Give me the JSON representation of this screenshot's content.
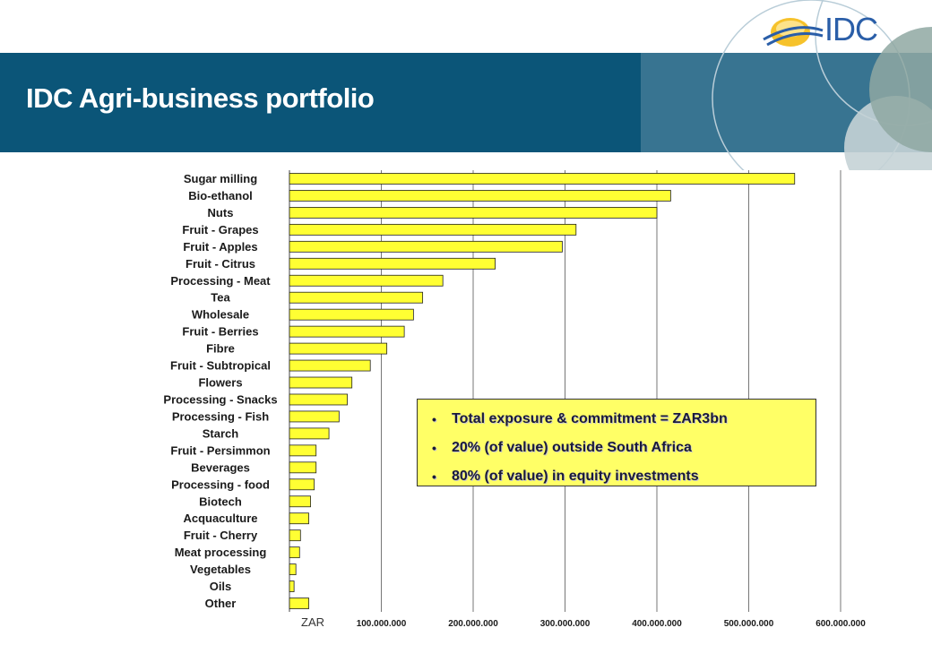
{
  "header": {
    "title": "IDC Agri-business portfolio",
    "logo_text": "IDC",
    "band_color": "#0b5578",
    "logo_color": "#2a5ea8"
  },
  "info_box": {
    "items": [
      "Total exposure & commitment = ZAR3bn",
      "20% (of value) outside South Africa",
      "80% (of value) in equity investments"
    ],
    "background": "#ffff66"
  },
  "chart_data": {
    "type": "bar",
    "orientation": "horizontal",
    "bar_color": "#ffff33",
    "categories": [
      "Sugar milling",
      "Bio-ethanol",
      "Nuts",
      "Fruit - Grapes",
      "Fruit - Apples",
      "Fruit - Citrus",
      "Processing - Meat",
      "Tea",
      "Wholesale",
      "Fruit - Berries",
      "Fibre",
      "Fruit - Subtropical",
      "Flowers",
      "Processing - Snacks",
      "Processing - Fish",
      "Starch",
      "Fruit - Persimmon",
      "Beverages",
      "Processing - food",
      "Biotech",
      "Acquaculture",
      "Fruit - Cherry",
      "Meat processing",
      "Vegetables",
      "Oils",
      "Other"
    ],
    "values": [
      550000000,
      415000000,
      400000000,
      312000000,
      297000000,
      224000000,
      167000000,
      145000000,
      135000000,
      125000000,
      106000000,
      88000000,
      68000000,
      63000000,
      54000000,
      43000000,
      29000000,
      29000000,
      27000000,
      23000000,
      21000000,
      12000000,
      11000000,
      7000000,
      5000000,
      21000000
    ],
    "xlabel": "ZAR",
    "xlim": [
      0,
      600000000
    ],
    "ticks": [
      100000000,
      200000000,
      300000000,
      400000000,
      500000000,
      600000000
    ],
    "tick_labels": [
      "100.000.000",
      "200.000.000",
      "300.000.000",
      "400.000.000",
      "500.000.000",
      "600.000.000"
    ],
    "grid": true
  }
}
